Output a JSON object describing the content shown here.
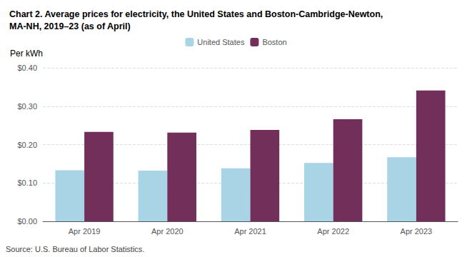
{
  "chart_data": {
    "type": "bar",
    "title": "Chart 2. Average prices for electricity, the United States and Boston-Cambridge-Newton,\nMA-NH, 2019–23 (as of April)",
    "ylabel": "Per kWh",
    "source": "Source: U.S. Bureau of Labor Statistics.",
    "categories": [
      "Apr 2019",
      "Apr 2020",
      "Apr 2021",
      "Apr 2022",
      "Apr 2023"
    ],
    "series": [
      {
        "name": "United States",
        "color": "#a8d4e6",
        "values": [
          0.133,
          0.132,
          0.138,
          0.152,
          0.167
        ]
      },
      {
        "name": "Boston",
        "color": "#722F5A",
        "values": [
          0.233,
          0.231,
          0.238,
          0.266,
          0.341
        ]
      }
    ],
    "ylim": [
      0,
      0.4
    ],
    "yticks": [
      {
        "value": 0.0,
        "label": "$0.00"
      },
      {
        "value": 0.1,
        "label": "$0.10"
      },
      {
        "value": 0.2,
        "label": "$0.20"
      },
      {
        "value": 0.3,
        "label": "$0.30"
      },
      {
        "value": 0.4,
        "label": "$0.40"
      }
    ],
    "grid": true,
    "legend": "top"
  }
}
